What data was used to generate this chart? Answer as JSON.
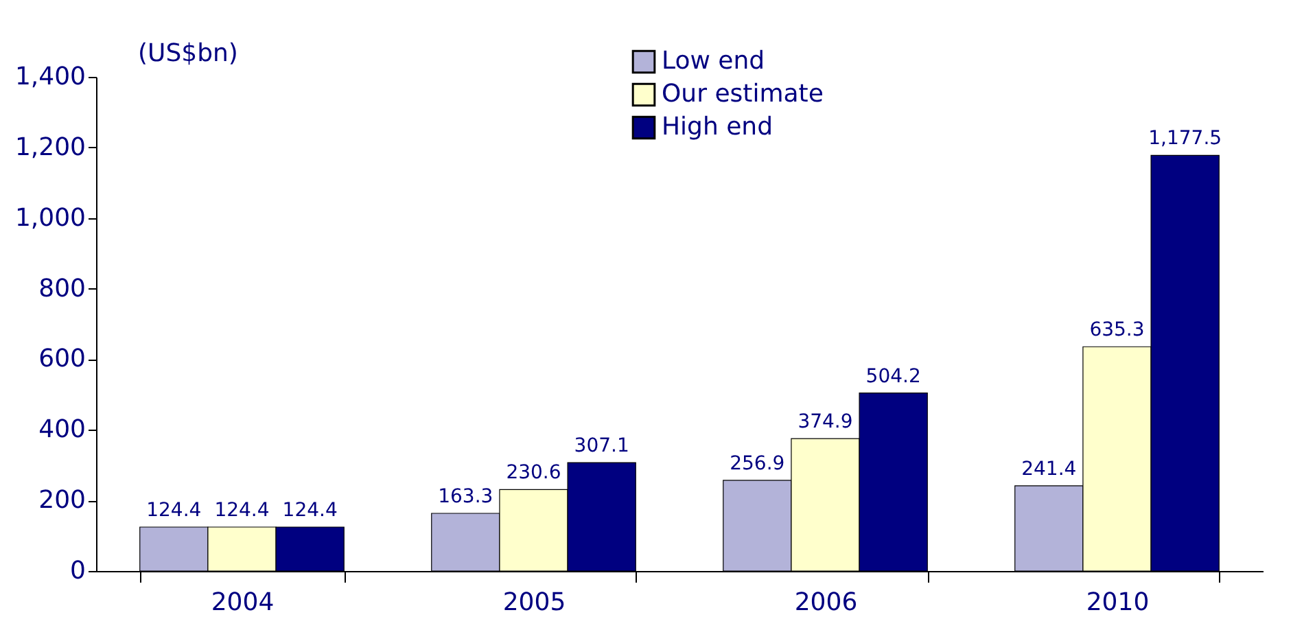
{
  "chart_data": {
    "type": "bar",
    "ylabel": "(US$bn)",
    "categories": [
      "2004",
      "2005",
      "2006",
      "2010"
    ],
    "series": [
      {
        "name": "Low end",
        "color": "#b3b3d9",
        "values": [
          124.4,
          163.3,
          256.9,
          241.4
        ],
        "value_labels": [
          "124.4",
          "163.3",
          "256.9",
          "241.4"
        ]
      },
      {
        "name": "Our estimate",
        "color": "#ffffcc",
        "values": [
          124.4,
          230.6,
          374.9,
          635.3
        ],
        "value_labels": [
          "124.4",
          "230.6",
          "374.9",
          "635.3"
        ]
      },
      {
        "name": "High end",
        "color": "#000080",
        "values": [
          124.4,
          307.1,
          504.2,
          1177.5
        ],
        "value_labels": [
          "124.4",
          "307.1",
          "504.2",
          "1,177.5"
        ]
      }
    ],
    "ylim": [
      0,
      1400
    ],
    "yticks": [
      0,
      {
        "value": 200,
        "label": "200"
      },
      {
        "value": 400,
        "label": "400"
      },
      {
        "value": 600,
        "label": "600"
      },
      {
        "value": 800,
        "label": "800"
      },
      {
        "value": 1000,
        "label": "1,000"
      },
      {
        "value": 1200,
        "label": "1,200"
      },
      {
        "value": 1400,
        "label": "1,400"
      }
    ],
    "legend": "top",
    "grid": false
  }
}
